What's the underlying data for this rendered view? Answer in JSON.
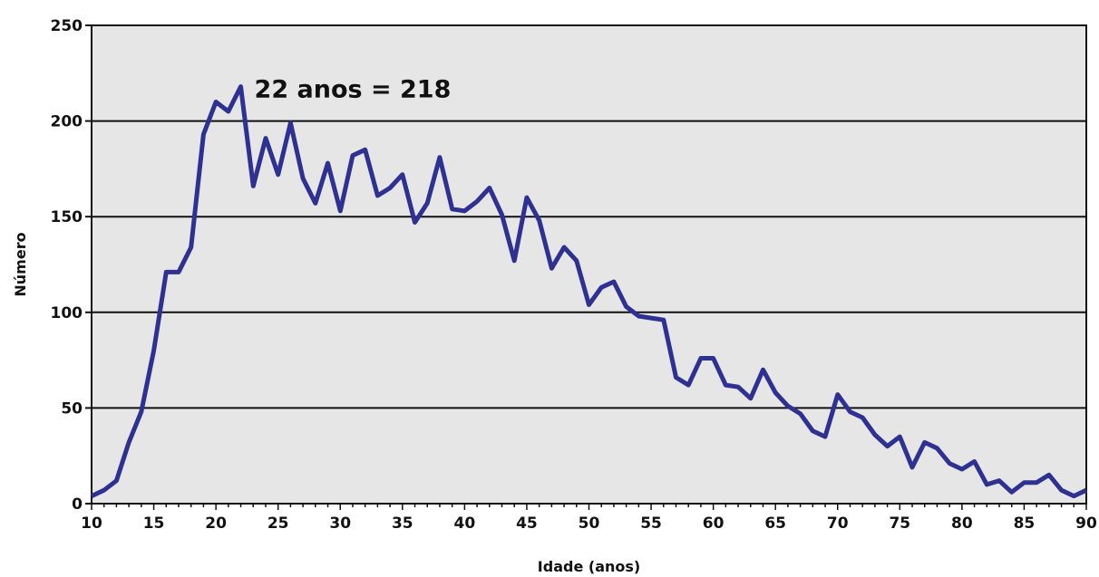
{
  "chart_data": {
    "type": "line",
    "title": "",
    "xlabel": "Idade (anos)",
    "ylabel": "Número",
    "xlim": [
      10,
      90
    ],
    "ylim": [
      0,
      250
    ],
    "x_ticks": [
      10,
      15,
      20,
      25,
      30,
      35,
      40,
      45,
      50,
      55,
      60,
      65,
      70,
      75,
      80,
      85,
      90
    ],
    "y_ticks": [
      0,
      50,
      100,
      150,
      200,
      250
    ],
    "grid": "horizontal",
    "plot_background": "#e6e6e6",
    "series": [
      {
        "color": "#2e3192",
        "x": [
          10,
          11,
          12,
          13,
          14,
          15,
          16,
          17,
          18,
          19,
          20,
          21,
          22,
          23,
          24,
          25,
          26,
          27,
          28,
          29,
          30,
          31,
          32,
          33,
          34,
          35,
          36,
          37,
          38,
          39,
          40,
          41,
          42,
          43,
          44,
          45,
          46,
          47,
          48,
          49,
          50,
          51,
          52,
          53,
          54,
          55,
          56,
          57,
          58,
          59,
          60,
          61,
          62,
          63,
          64,
          65,
          66,
          67,
          68,
          69,
          70,
          71,
          72,
          73,
          74,
          75,
          76,
          77,
          78,
          79,
          80,
          81,
          82,
          83,
          84,
          85,
          86,
          87,
          88,
          89,
          90
        ],
        "y": [
          4,
          7,
          12,
          32,
          48,
          80,
          121,
          121,
          134,
          193,
          210,
          205,
          218,
          166,
          191,
          172,
          199,
          170,
          157,
          178,
          153,
          182,
          185,
          161,
          165,
          172,
          147,
          157,
          181,
          154,
          153,
          158,
          165,
          151,
          127,
          160,
          148,
          123,
          134,
          127,
          104,
          113,
          116,
          103,
          98,
          97,
          96,
          66,
          62,
          76,
          76,
          62,
          61,
          55,
          70,
          58,
          51,
          47,
          38,
          35,
          57,
          48,
          45,
          36,
          30,
          35,
          19,
          32,
          29,
          21,
          18,
          22,
          10,
          12,
          6,
          11,
          11,
          15,
          7,
          4,
          7
        ]
      }
    ],
    "annotations": [
      {
        "text": "22 anos = 218",
        "x": 22,
        "y": 218
      }
    ]
  }
}
